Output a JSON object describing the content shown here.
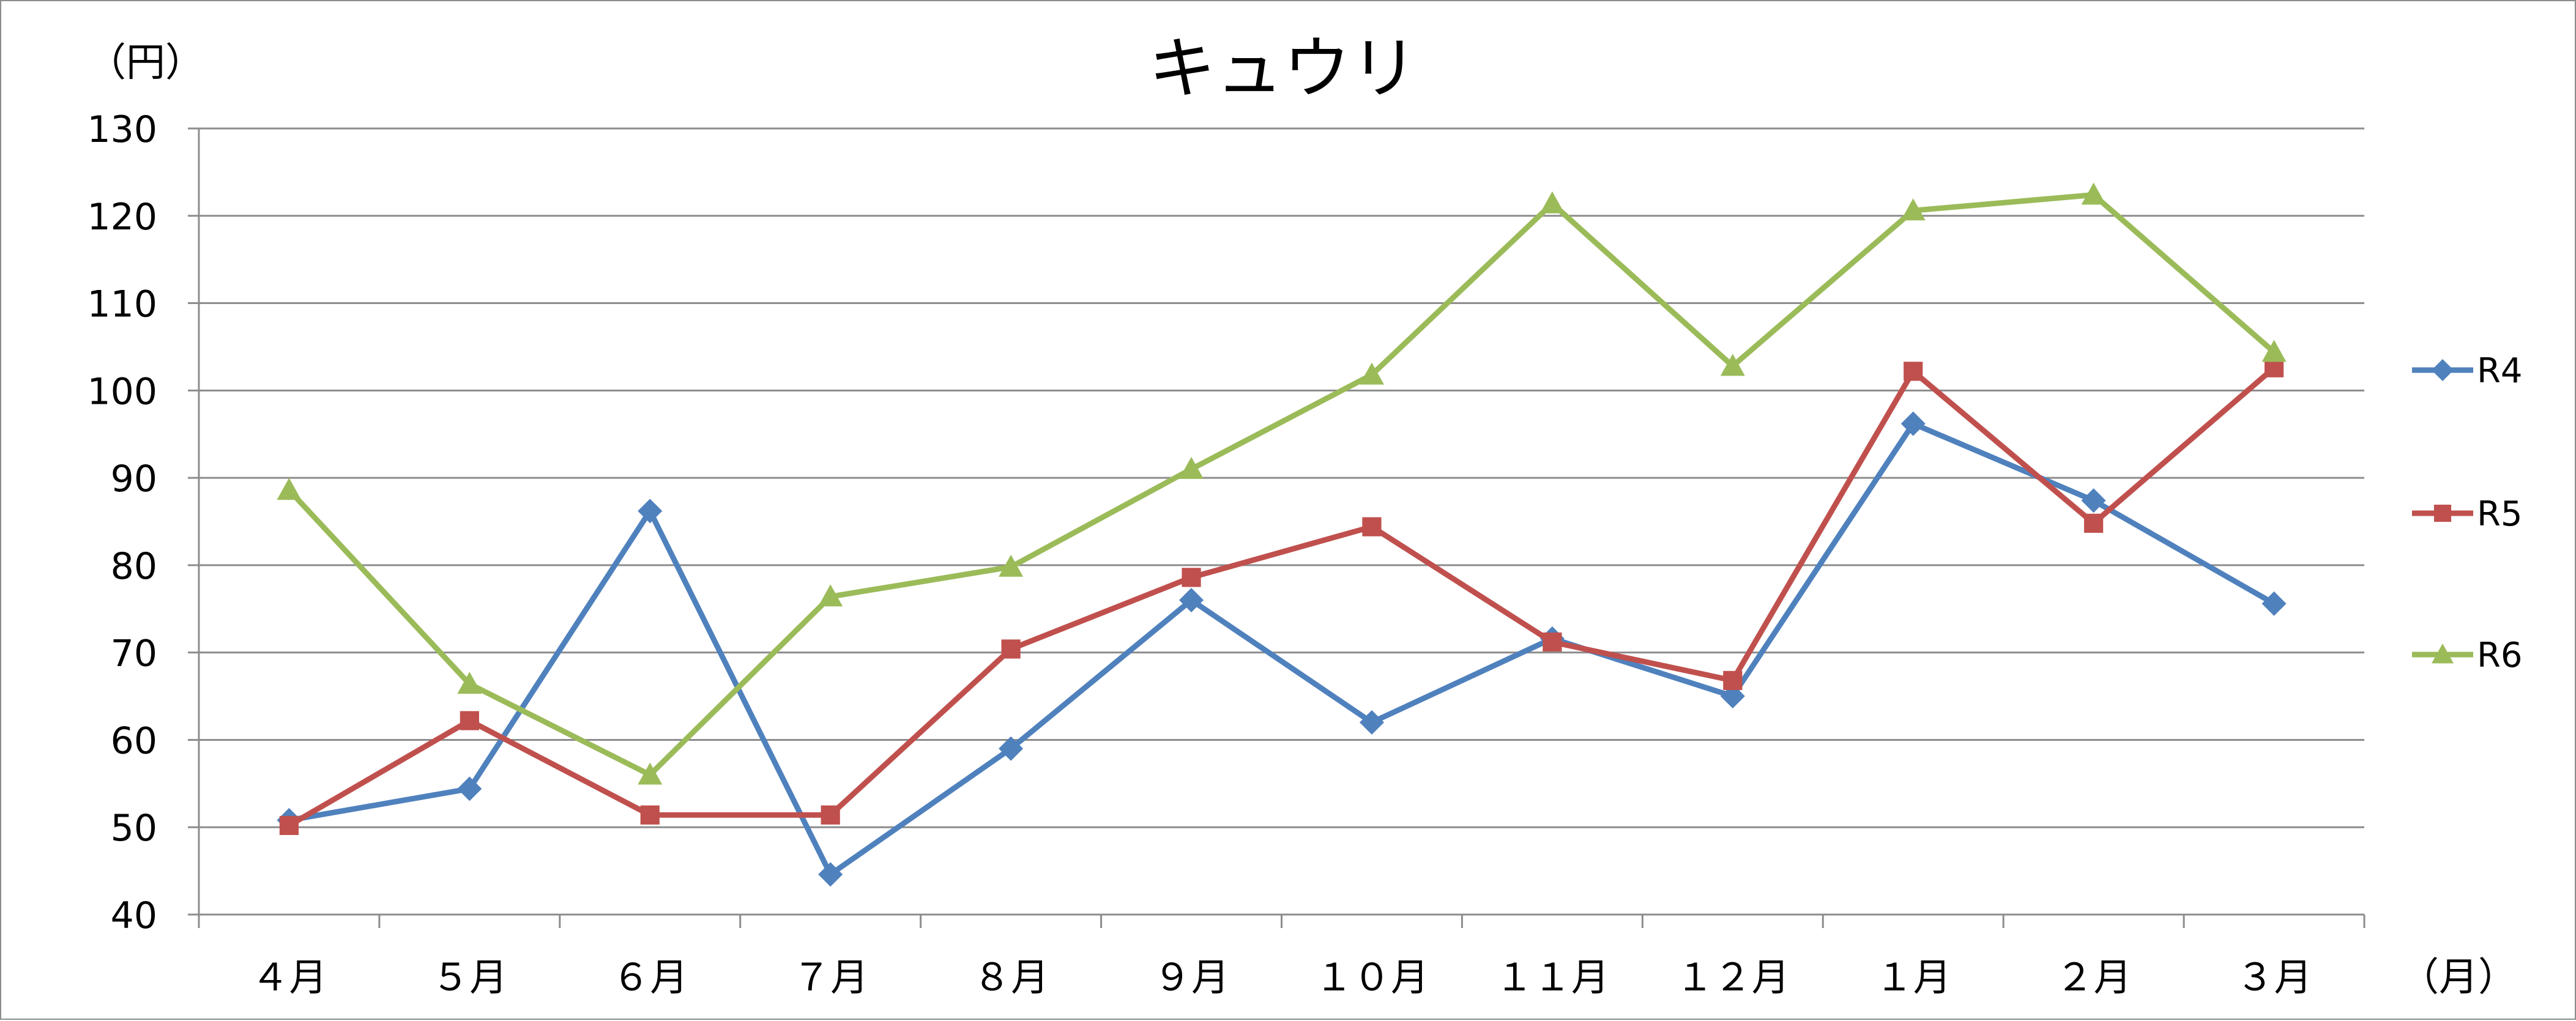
{
  "chart_data": {
    "type": "line",
    "title": "キュウリ",
    "ylabel": "（円）",
    "xlabel": "（月）",
    "categories": [
      "４月",
      "５月",
      "６月",
      "７月",
      "８月",
      "９月",
      "１０月",
      "１１月",
      "１２月",
      "１月",
      "２月",
      "３月"
    ],
    "ylim": [
      40,
      130
    ],
    "yticks": [
      40,
      50,
      60,
      70,
      80,
      90,
      100,
      110,
      120,
      130
    ],
    "grid": true,
    "legend": "right",
    "series": [
      {
        "name": "R4",
        "color": "#4F81BD",
        "marker": "diamond",
        "values": [
          50.8,
          54.4,
          86.2,
          44.6,
          59.0,
          76.0,
          62.0,
          71.6,
          65.0,
          96.2,
          87.4,
          75.6
        ]
      },
      {
        "name": "R5",
        "color": "#C0504D",
        "marker": "square",
        "values": [
          50.2,
          62.2,
          51.4,
          51.4,
          70.4,
          78.6,
          84.4,
          71.2,
          66.8,
          102.2,
          84.8,
          102.6
        ]
      },
      {
        "name": "R6",
        "color": "#9BBB59",
        "marker": "triangle",
        "values": [
          88.6,
          66.4,
          56.0,
          76.4,
          79.8,
          91.0,
          101.8,
          121.4,
          102.8,
          120.6,
          122.4,
          104.4
        ]
      }
    ]
  }
}
